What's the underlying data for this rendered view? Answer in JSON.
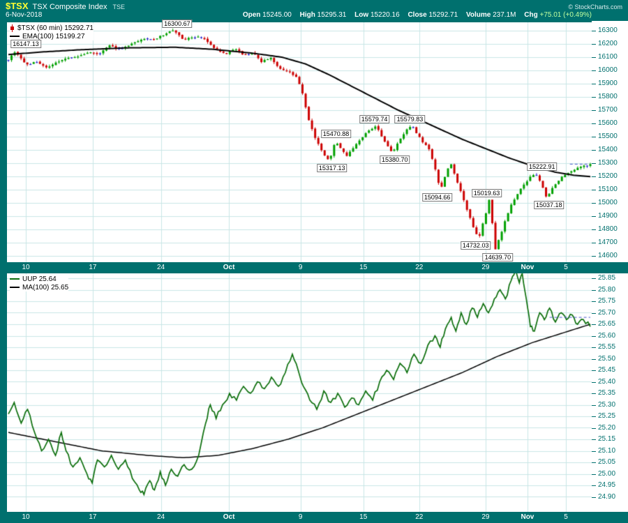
{
  "header": {
    "symbol": "$TSX",
    "name": "TSX Composite Index",
    "exchange": "TSE",
    "date": "6-Nov-2018",
    "copyright": "© StockCharts.com",
    "quote": {
      "open_label": "Open",
      "open": "15245.00",
      "high_label": "High",
      "high": "15295.31",
      "low_label": "Low",
      "low": "15220.16",
      "close_label": "Close",
      "close": "15292.71",
      "volume_label": "Volume",
      "volume": "237.1M",
      "chg_label": "Chg",
      "chg": "+75.01 (+0.49%)"
    }
  },
  "colors": {
    "teal": "#00706E",
    "grid": "#C9E6E6",
    "up": "#00A000",
    "down": "#CC0000",
    "neutral": "#2222CC",
    "ema": "#000000",
    "ma": "#000000",
    "uup": "#0B6E0B",
    "last_dash": "#4455CC",
    "axis_text": "#00706E",
    "symbol_yellow": "#FFFF33",
    "chg_green": "#BFFF9F"
  },
  "chart_data": [
    {
      "type": "candlestick",
      "title": "$TSX (60 min)",
      "last_close": 15292.71,
      "ema_value": 15199.27,
      "legend": [
        "$TSX (60 min) 15292.71",
        "EMA(100) 15199.27"
      ],
      "ylim": [
        14600,
        16300
      ],
      "ytick_step": 100,
      "bars": 185,
      "dashed_level": 15292.71,
      "dashed_from": 0.965,
      "x_ticks": [
        {
          "label": "10",
          "f": 0.03,
          "bold": false
        },
        {
          "label": "17",
          "f": 0.145,
          "bold": false
        },
        {
          "label": "24",
          "f": 0.262,
          "bold": false
        },
        {
          "label": "Oct",
          "f": 0.379,
          "bold": true
        },
        {
          "label": "9",
          "f": 0.502,
          "bold": false
        },
        {
          "label": "15",
          "f": 0.61,
          "bold": false
        },
        {
          "label": "22",
          "f": 0.706,
          "bold": false
        },
        {
          "label": "29",
          "f": 0.82,
          "bold": false
        },
        {
          "label": "Nov",
          "f": 0.892,
          "bold": true
        },
        {
          "label": "5",
          "f": 0.958,
          "bold": false
        }
      ],
      "price_path": [
        [
          0.0,
          16080
        ],
        [
          0.012,
          16147
        ],
        [
          0.03,
          16040
        ],
        [
          0.048,
          16065
        ],
        [
          0.066,
          16020
        ],
        [
          0.084,
          16060
        ],
        [
          0.102,
          16090
        ],
        [
          0.12,
          16105
        ],
        [
          0.138,
          16140
        ],
        [
          0.156,
          16125
        ],
        [
          0.174,
          16185
        ],
        [
          0.192,
          16160
        ],
        [
          0.21,
          16200
        ],
        [
          0.23,
          16240
        ],
        [
          0.252,
          16230
        ],
        [
          0.27,
          16280
        ],
        [
          0.286,
          16300
        ],
        [
          0.3,
          16230
        ],
        [
          0.315,
          16245
        ],
        [
          0.33,
          16255
        ],
        [
          0.345,
          16205
        ],
        [
          0.36,
          16150
        ],
        [
          0.375,
          16125
        ],
        [
          0.39,
          16165
        ],
        [
          0.405,
          16110
        ],
        [
          0.42,
          16140
        ],
        [
          0.435,
          16065
        ],
        [
          0.45,
          16095
        ],
        [
          0.465,
          16020
        ],
        [
          0.48,
          15995
        ],
        [
          0.495,
          15950
        ],
        [
          0.505,
          15840
        ],
        [
          0.515,
          15640
        ],
        [
          0.525,
          15510
        ],
        [
          0.535,
          15420
        ],
        [
          0.545,
          15350
        ],
        [
          0.552,
          15317
        ],
        [
          0.562,
          15471
        ],
        [
          0.572,
          15400
        ],
        [
          0.582,
          15355
        ],
        [
          0.595,
          15430
        ],
        [
          0.608,
          15495
        ],
        [
          0.62,
          15545
        ],
        [
          0.632,
          15580
        ],
        [
          0.642,
          15500
        ],
        [
          0.652,
          15430
        ],
        [
          0.66,
          15381
        ],
        [
          0.67,
          15460
        ],
        [
          0.682,
          15540
        ],
        [
          0.694,
          15580
        ],
        [
          0.704,
          15510
        ],
        [
          0.714,
          15450
        ],
        [
          0.724,
          15400
        ],
        [
          0.732,
          15280
        ],
        [
          0.742,
          15095
        ],
        [
          0.752,
          15220
        ],
        [
          0.76,
          15300
        ],
        [
          0.77,
          15180
        ],
        [
          0.78,
          15050
        ],
        [
          0.79,
          14920
        ],
        [
          0.8,
          14810
        ],
        [
          0.808,
          14732
        ],
        [
          0.818,
          14880
        ],
        [
          0.826,
          15020
        ],
        [
          0.832,
          14830
        ],
        [
          0.836,
          14640
        ],
        [
          0.846,
          14760
        ],
        [
          0.856,
          14900
        ],
        [
          0.866,
          15000
        ],
        [
          0.876,
          15080
        ],
        [
          0.886,
          15140
        ],
        [
          0.896,
          15190
        ],
        [
          0.905,
          15223
        ],
        [
          0.915,
          15150
        ],
        [
          0.925,
          15037
        ],
        [
          0.935,
          15110
        ],
        [
          0.945,
          15170
        ],
        [
          0.955,
          15210
        ],
        [
          0.965,
          15240
        ],
        [
          0.975,
          15255
        ],
        [
          0.985,
          15270
        ],
        [
          1.0,
          15293
        ]
      ],
      "ema_path": [
        [
          0.0,
          16120
        ],
        [
          0.06,
          16140
        ],
        [
          0.12,
          16155
        ],
        [
          0.2,
          16170
        ],
        [
          0.286,
          16175
        ],
        [
          0.35,
          16160
        ],
        [
          0.42,
          16130
        ],
        [
          0.47,
          16100
        ],
        [
          0.51,
          16050
        ],
        [
          0.55,
          15970
        ],
        [
          0.59,
          15880
        ],
        [
          0.63,
          15790
        ],
        [
          0.67,
          15700
        ],
        [
          0.71,
          15620
        ],
        [
          0.74,
          15560
        ],
        [
          0.78,
          15480
        ],
        [
          0.82,
          15410
        ],
        [
          0.86,
          15340
        ],
        [
          0.9,
          15280
        ],
        [
          0.94,
          15232
        ],
        [
          0.97,
          15210
        ],
        [
          1.0,
          15199
        ]
      ],
      "annotations": [
        {
          "text": "16147.13",
          "f": 0.03,
          "price": 16147.13,
          "side": "above"
        },
        {
          "text": "16300.67",
          "f": 0.29,
          "price": 16300.67,
          "side": "above"
        },
        {
          "text": "15470.88",
          "f": 0.563,
          "price": 15470.88,
          "side": "above"
        },
        {
          "text": "15317.13",
          "f": 0.556,
          "price": 15317.13,
          "side": "below"
        },
        {
          "text": "15579.74",
          "f": 0.629,
          "price": 15579.74,
          "side": "above"
        },
        {
          "text": "15380.70",
          "f": 0.664,
          "price": 15380.7,
          "side": "below"
        },
        {
          "text": "15579.83",
          "f": 0.69,
          "price": 15579.83,
          "side": "above"
        },
        {
          "text": "15094.66",
          "f": 0.737,
          "price": 15094.66,
          "side": "below"
        },
        {
          "text": "14732.03",
          "f": 0.803,
          "price": 14732.03,
          "side": "below"
        },
        {
          "text": "15019.63",
          "f": 0.822,
          "price": 15019.63,
          "side": "above"
        },
        {
          "text": "14639.70",
          "f": 0.841,
          "price": 14639.7,
          "side": "below"
        },
        {
          "text": "15222.91",
          "f": 0.917,
          "price": 15222.91,
          "side": "above"
        },
        {
          "text": "15037.18",
          "f": 0.929,
          "price": 15037.18,
          "side": "below"
        }
      ]
    },
    {
      "type": "line",
      "title": "UUP",
      "last_close": 25.64,
      "ma_value": 25.65,
      "legend": [
        "UUP 25.64",
        "MA(100) 25.65"
      ],
      "ylim": [
        24.9,
        25.85
      ],
      "ytick_step": 0.05,
      "dashed_level": 25.68,
      "dashed_from": 0.93,
      "x_ticks": [
        {
          "label": "10",
          "f": 0.03,
          "bold": false
        },
        {
          "label": "17",
          "f": 0.145,
          "bold": false
        },
        {
          "label": "24",
          "f": 0.262,
          "bold": false
        },
        {
          "label": "Oct",
          "f": 0.379,
          "bold": true
        },
        {
          "label": "9",
          "f": 0.502,
          "bold": false
        },
        {
          "label": "15",
          "f": 0.61,
          "bold": false
        },
        {
          "label": "22",
          "f": 0.706,
          "bold": false
        },
        {
          "label": "29",
          "f": 0.82,
          "bold": false
        },
        {
          "label": "Nov",
          "f": 0.892,
          "bold": true
        },
        {
          "label": "5",
          "f": 0.958,
          "bold": false
        }
      ],
      "uup_path": [
        [
          0.0,
          25.26
        ],
        [
          0.01,
          25.31
        ],
        [
          0.022,
          25.22
        ],
        [
          0.033,
          25.28
        ],
        [
          0.045,
          25.18
        ],
        [
          0.057,
          25.1
        ],
        [
          0.069,
          25.15
        ],
        [
          0.081,
          25.08
        ],
        [
          0.091,
          25.18
        ],
        [
          0.099,
          25.1
        ],
        [
          0.111,
          25.03
        ],
        [
          0.123,
          25.07
        ],
        [
          0.135,
          25.0
        ],
        [
          0.144,
          24.96
        ],
        [
          0.153,
          25.06
        ],
        [
          0.165,
          25.03
        ],
        [
          0.177,
          25.08
        ],
        [
          0.189,
          25.02
        ],
        [
          0.201,
          25.06
        ],
        [
          0.213,
          24.98
        ],
        [
          0.225,
          24.93
        ],
        [
          0.233,
          24.91
        ],
        [
          0.243,
          24.97
        ],
        [
          0.251,
          24.93
        ],
        [
          0.261,
          25.01
        ],
        [
          0.27,
          24.95
        ],
        [
          0.28,
          25.02
        ],
        [
          0.291,
          24.99
        ],
        [
          0.302,
          25.04
        ],
        [
          0.315,
          25.02
        ],
        [
          0.327,
          25.08
        ],
        [
          0.339,
          25.22
        ],
        [
          0.347,
          25.3
        ],
        [
          0.357,
          25.24
        ],
        [
          0.368,
          25.3
        ],
        [
          0.38,
          25.35
        ],
        [
          0.392,
          25.32
        ],
        [
          0.404,
          25.38
        ],
        [
          0.416,
          25.35
        ],
        [
          0.428,
          25.4
        ],
        [
          0.44,
          25.37
        ],
        [
          0.452,
          25.42
        ],
        [
          0.464,
          25.38
        ],
        [
          0.476,
          25.44
        ],
        [
          0.488,
          25.52
        ],
        [
          0.498,
          25.45
        ],
        [
          0.507,
          25.38
        ],
        [
          0.518,
          25.32
        ],
        [
          0.53,
          25.28
        ],
        [
          0.542,
          25.36
        ],
        [
          0.554,
          25.31
        ],
        [
          0.566,
          25.35
        ],
        [
          0.578,
          25.29
        ],
        [
          0.59,
          25.33
        ],
        [
          0.602,
          25.3
        ],
        [
          0.614,
          25.36
        ],
        [
          0.626,
          25.32
        ],
        [
          0.638,
          25.4
        ],
        [
          0.65,
          25.45
        ],
        [
          0.662,
          25.41
        ],
        [
          0.673,
          25.48
        ],
        [
          0.685,
          25.44
        ],
        [
          0.697,
          25.52
        ],
        [
          0.709,
          25.48
        ],
        [
          0.721,
          25.56
        ],
        [
          0.733,
          25.6
        ],
        [
          0.742,
          25.55
        ],
        [
          0.751,
          25.63
        ],
        [
          0.761,
          25.68
        ],
        [
          0.769,
          25.62
        ],
        [
          0.778,
          25.7
        ],
        [
          0.787,
          25.65
        ],
        [
          0.797,
          25.72
        ],
        [
          0.806,
          25.68
        ],
        [
          0.816,
          25.74
        ],
        [
          0.825,
          25.7
        ],
        [
          0.835,
          25.76
        ],
        [
          0.845,
          25.8
        ],
        [
          0.854,
          25.76
        ],
        [
          0.864,
          25.84
        ],
        [
          0.871,
          25.88
        ],
        [
          0.878,
          25.83
        ],
        [
          0.883,
          25.87
        ],
        [
          0.89,
          25.76
        ],
        [
          0.897,
          25.64
        ],
        [
          0.904,
          25.62
        ],
        [
          0.913,
          25.7
        ],
        [
          0.921,
          25.67
        ],
        [
          0.93,
          25.72
        ],
        [
          0.94,
          25.66
        ],
        [
          0.95,
          25.7
        ],
        [
          0.959,
          25.67
        ],
        [
          0.969,
          25.69
        ],
        [
          0.978,
          25.65
        ],
        [
          0.988,
          25.67
        ],
        [
          1.0,
          25.64
        ]
      ],
      "ma_path": [
        [
          0.0,
          25.18
        ],
        [
          0.08,
          25.14
        ],
        [
          0.16,
          25.1
        ],
        [
          0.24,
          25.08
        ],
        [
          0.3,
          25.07
        ],
        [
          0.36,
          25.08
        ],
        [
          0.42,
          25.11
        ],
        [
          0.48,
          25.15
        ],
        [
          0.54,
          25.2
        ],
        [
          0.6,
          25.26
        ],
        [
          0.66,
          25.32
        ],
        [
          0.72,
          25.38
        ],
        [
          0.78,
          25.44
        ],
        [
          0.84,
          25.51
        ],
        [
          0.9,
          25.57
        ],
        [
          0.95,
          25.61
        ],
        [
          1.0,
          25.65
        ]
      ]
    }
  ]
}
